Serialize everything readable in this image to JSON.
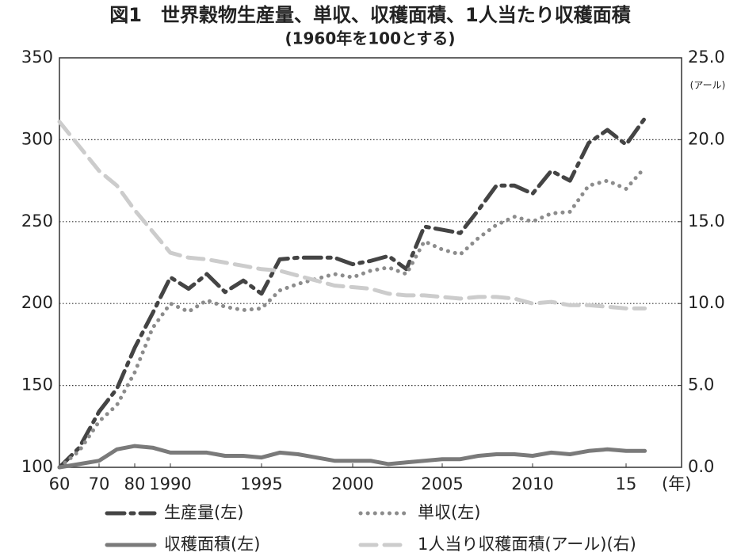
{
  "chart_data": {
    "type": "line",
    "title": "図1　世界穀物生産量、単収、収穫面積、1人当たり収穫面積",
    "subtitle": "(1960年を100とする)",
    "x_label": "(年)",
    "y2_label": "(アール)",
    "x": [
      1960,
      1965,
      1970,
      1975,
      1980,
      1985,
      1990,
      1991,
      1992,
      1993,
      1994,
      1995,
      1996,
      1997,
      1998,
      1999,
      2000,
      2001,
      2002,
      2003,
      2004,
      2005,
      2006,
      2007,
      2008,
      2009,
      2010,
      2011,
      2012,
      2013,
      2014,
      2015,
      2016
    ],
    "xlim": [
      1960,
      2018
    ],
    "xticks": [
      {
        "value": 1960,
        "label": "60"
      },
      {
        "value": 1970,
        "label": "70"
      },
      {
        "value": 1980,
        "label": "80"
      },
      1990,
      1995,
      2000,
      2005,
      2010,
      {
        "value": 2015,
        "label": "15"
      }
    ],
    "ylim": [
      100,
      350
    ],
    "yticks": [
      100,
      150,
      200,
      250,
      300,
      350
    ],
    "y2lim": [
      0,
      25
    ],
    "y2ticks": [
      {
        "value": 0,
        "label": "0.0"
      },
      {
        "value": 5,
        "label": "5.0"
      },
      {
        "value": 10,
        "label": "10.0"
      },
      {
        "value": 15,
        "label": "15.0"
      },
      {
        "value": 20,
        "label": "20.0"
      },
      {
        "value": 25,
        "label": "25.0"
      }
    ],
    "grid": true,
    "series": [
      {
        "name": "生産量(左)",
        "color": "#444444",
        "style": "dashdot",
        "values": [
          100,
          112,
          134,
          148,
          173,
          194,
          216,
          209,
          218,
          207,
          214,
          206,
          227,
          228,
          228,
          228,
          224,
          226,
          229,
          221,
          247,
          245,
          243,
          257,
          272,
          272,
          267,
          281,
          275,
          298,
          306,
          297,
          313
        ]
      },
      {
        "name": "単収(左)",
        "color": "#8c8c8c",
        "style": "dotted",
        "values": [
          100,
          110,
          128,
          138,
          158,
          185,
          200,
          195,
          202,
          198,
          196,
          197,
          208,
          212,
          215,
          218,
          216,
          220,
          222,
          218,
          238,
          233,
          230,
          240,
          248,
          253,
          250,
          255,
          256,
          272,
          275,
          270,
          283
        ]
      },
      {
        "name": "収穫面積(左)",
        "color": "#7a7a7a",
        "style": "solid",
        "values": [
          100,
          102,
          104,
          111,
          113,
          112,
          109,
          109,
          109,
          107,
          107,
          106,
          109,
          108,
          106,
          104,
          104,
          104,
          102,
          103,
          104,
          105,
          105,
          107,
          108,
          108,
          107,
          109,
          108,
          110,
          111,
          110,
          110
        ]
      },
      {
        "name": "1人当り収穫面積(アール)(右)",
        "color": "#cccccc",
        "style": "dashed",
        "axis": "y2",
        "values": [
          21.1,
          19.6,
          18.1,
          17.2,
          15.7,
          14.4,
          13.1,
          12.8,
          12.7,
          12.5,
          12.3,
          12.1,
          12.0,
          11.7,
          11.4,
          11.1,
          11.0,
          10.9,
          10.6,
          10.5,
          10.5,
          10.4,
          10.3,
          10.4,
          10.4,
          10.3,
          10.0,
          10.1,
          9.9,
          9.9,
          9.8,
          9.7,
          9.7
        ]
      }
    ]
  }
}
